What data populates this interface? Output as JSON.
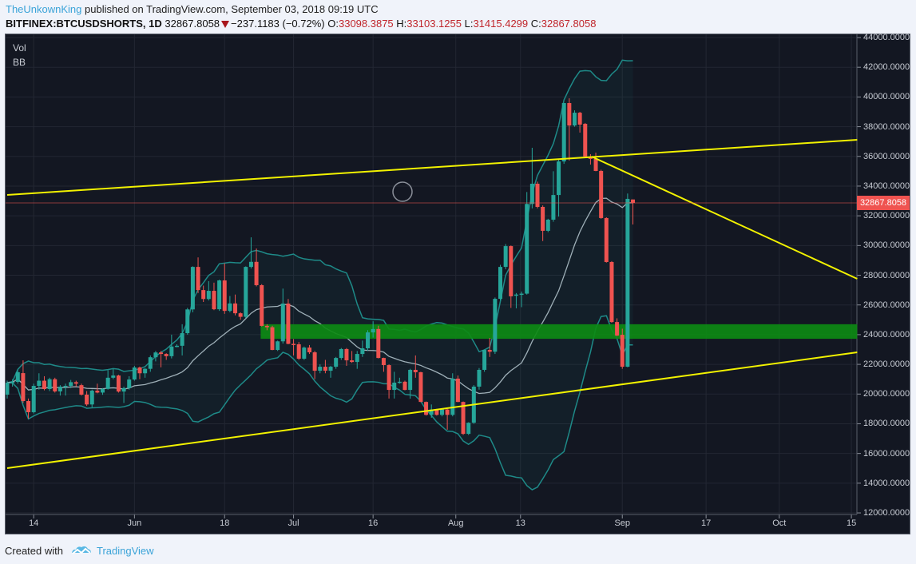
{
  "header": {
    "author": "TheUnkownKing",
    "published": "published on TradingView.com, September 03, 2018 09:19 UTC",
    "symbol": "BITFINEX:BTCUSDSHORTS, 1D",
    "last": "32867.8058",
    "change": "−237.1183 (−0.72%)",
    "o_label": "O:",
    "o": "33098.3875",
    "h_label": "H:",
    "h": "33103.1255",
    "l_label": "L:",
    "l": "31415.4299",
    "c_label": "C:",
    "c": "32867.8058",
    "direction_icon": "down-triangle-icon"
  },
  "legend": [
    "Vol",
    "BB"
  ],
  "price_tag": "32867.8058",
  "footer": {
    "created_with": "Created with",
    "brand": "TradingView"
  },
  "colors": {
    "up": "#26a69a",
    "down": "#ef5350",
    "bands": "#1e8a88",
    "basis": "#9fb0b8",
    "trend": "#f2f200",
    "zone": "#0d8a14",
    "bg": "#131722",
    "grid": "#232733"
  },
  "chart_data": {
    "type": "candlestick",
    "x_unit": "day index from first candle",
    "ylim": [
      12000,
      44000
    ],
    "y_ticks": [
      "44000.0000",
      "42000.0000",
      "40000.0000",
      "38000.0000",
      "36000.0000",
      "34000.0000",
      "32000.0000",
      "30000.0000",
      "28000.0000",
      "26000.0000",
      "24000.0000",
      "22000.0000",
      "20000.0000",
      "18000.0000",
      "16000.0000",
      "14000.0000",
      "12000.0000"
    ],
    "y_tick_values": [
      44000,
      42000,
      40000,
      38000,
      36000,
      34000,
      32000,
      30000,
      28000,
      26000,
      24000,
      22000,
      20000,
      18000,
      16000,
      14000,
      12000
    ],
    "x_ticks": [
      {
        "label": "14",
        "day": 5
      },
      {
        "label": "Jun",
        "day": 24
      },
      {
        "label": "18",
        "day": 41
      },
      {
        "label": "Jul",
        "day": 54
      },
      {
        "label": "16",
        "day": 69
      },
      {
        "label": "Aug",
        "day": 84.6
      },
      {
        "label": "13",
        "day": 96.8
      },
      {
        "label": "Sep",
        "day": 116
      },
      {
        "label": "17",
        "day": 131.8
      },
      {
        "label": "Oct",
        "day": 145.6
      },
      {
        "label": "15",
        "day": 159.2
      }
    ],
    "x_max_day": 160.3,
    "last_price": 32867.8058,
    "indicators": {
      "bb_period": 20,
      "bb_mult": 2
    },
    "ohlc": [
      [
        19960,
        20900,
        19700,
        20770
      ],
      [
        20770,
        21000,
        20500,
        20820
      ],
      [
        20820,
        21600,
        20700,
        21470
      ],
      [
        21410,
        22270,
        19400,
        19530
      ],
      [
        19530,
        19700,
        18350,
        18780
      ],
      [
        18780,
        20700,
        18700,
        20550
      ],
      [
        20550,
        21400,
        20300,
        20900
      ],
      [
        20900,
        21200,
        20250,
        20340
      ],
      [
        20340,
        21100,
        20200,
        21000
      ],
      [
        21000,
        21100,
        20100,
        20180
      ],
      [
        20180,
        20600,
        19900,
        20500
      ],
      [
        20500,
        20700,
        19900,
        20550
      ],
      [
        20550,
        20950,
        20400,
        20800
      ],
      [
        20800,
        20900,
        20500,
        20700
      ],
      [
        20600,
        20700,
        19900,
        19960
      ],
      [
        19960,
        20200,
        19200,
        19300
      ],
      [
        19300,
        20300,
        19100,
        20230
      ],
      [
        20230,
        20700,
        20050,
        20100
      ],
      [
        20100,
        20400,
        19950,
        20350
      ],
      [
        20350,
        21600,
        20300,
        21100
      ],
      [
        21100,
        21700,
        21000,
        21250
      ],
      [
        21250,
        21300,
        20100,
        20170
      ],
      [
        20170,
        20500,
        19400,
        20400
      ],
      [
        20400,
        21200,
        20300,
        20980
      ],
      [
        20980,
        21900,
        20900,
        21790
      ],
      [
        21790,
        21850,
        21000,
        21400
      ],
      [
        21400,
        21750,
        21100,
        21700
      ],
      [
        21700,
        22600,
        21500,
        22480
      ],
      [
        22480,
        22900,
        22200,
        22800
      ],
      [
        22800,
        22900,
        21800,
        22700
      ],
      [
        22700,
        22750,
        22300,
        22550
      ],
      [
        22550,
        24000,
        22400,
        23200
      ],
      [
        23250,
        23350,
        23150,
        23250
      ],
      [
        23250,
        24700,
        22600,
        24100
      ],
      [
        24100,
        25800,
        24000,
        25700
      ],
      [
        25700,
        28600,
        25500,
        28560
      ],
      [
        28560,
        29200,
        26800,
        27000
      ],
      [
        27000,
        27300,
        26200,
        26400
      ],
      [
        26400,
        27600,
        26300,
        26950
      ],
      [
        26950,
        27500,
        25650,
        25710
      ],
      [
        25710,
        27700,
        25600,
        27650
      ],
      [
        27650,
        28800,
        25400,
        25600
      ],
      [
        25600,
        26600,
        25500,
        26100
      ],
      [
        26100,
        26700,
        25300,
        25440
      ],
      [
        25440,
        25500,
        25000,
        25200
      ],
      [
        25200,
        28600,
        25100,
        28560
      ],
      [
        28560,
        30550,
        28450,
        28900
      ],
      [
        28900,
        29800,
        27250,
        27330
      ],
      [
        27330,
        27400,
        24550,
        24590
      ],
      [
        24590,
        24700,
        24300,
        24500
      ],
      [
        24500,
        24600,
        22950,
        22970
      ],
      [
        22970,
        23600,
        22900,
        23550
      ],
      [
        23550,
        27100,
        23400,
        26090
      ],
      [
        26090,
        26400,
        23350,
        23380
      ],
      [
        23380,
        23700,
        22600,
        23350
      ],
      [
        23350,
        23500,
        22300,
        22380
      ],
      [
        22380,
        23200,
        22300,
        23130
      ],
      [
        23130,
        23300,
        22700,
        22810
      ],
      [
        22810,
        22900,
        21000,
        21570
      ],
      [
        21570,
        22000,
        21400,
        21840
      ],
      [
        21840,
        22300,
        21400,
        21570
      ],
      [
        21570,
        21900,
        21100,
        21840
      ],
      [
        21840,
        22500,
        21700,
        22430
      ],
      [
        22430,
        23100,
        22300,
        23030
      ],
      [
        23030,
        23100,
        21900,
        22270
      ],
      [
        22270,
        22900,
        22100,
        22160
      ],
      [
        22160,
        22900,
        21700,
        22700
      ],
      [
        22700,
        23600,
        22500,
        23080
      ],
      [
        23080,
        24300,
        22900,
        24150
      ],
      [
        24150,
        24900,
        23800,
        24380
      ],
      [
        24380,
        24600,
        22400,
        22430
      ],
      [
        22430,
        22450,
        21500,
        21950
      ],
      [
        21950,
        22000,
        19700,
        20280
      ],
      [
        20280,
        21500,
        19700,
        20770
      ],
      [
        20770,
        21100,
        20700,
        20830
      ],
      [
        20830,
        20900,
        20250,
        20280
      ],
      [
        20280,
        21700,
        19690,
        21630
      ],
      [
        21630,
        22600,
        21100,
        21470
      ],
      [
        21470,
        21500,
        19450,
        19470
      ],
      [
        19470,
        19500,
        18550,
        18600
      ],
      [
        18600,
        19300,
        18400,
        18960
      ],
      [
        18960,
        19000,
        18550,
        18600
      ],
      [
        18600,
        19000,
        18500,
        18960
      ],
      [
        18960,
        19000,
        17600,
        18600
      ],
      [
        18600,
        21400,
        18500,
        21040
      ],
      [
        21040,
        21250,
        19450,
        19470
      ],
      [
        19470,
        19500,
        17250,
        17320
      ],
      [
        17320,
        18100,
        17250,
        18070
      ],
      [
        18070,
        20600,
        18000,
        20500
      ],
      [
        20500,
        21750,
        20300,
        21630
      ],
      [
        21630,
        23000,
        21500,
        22970
      ],
      [
        22970,
        23780,
        22500,
        22850
      ],
      [
        22850,
        26500,
        22700,
        26410
      ],
      [
        26410,
        28700,
        26300,
        28560
      ],
      [
        28560,
        30100,
        28400,
        29960
      ],
      [
        29960,
        30000,
        25800,
        26580
      ],
      [
        26620,
        26800,
        25770,
        26700
      ],
      [
        26700,
        26900,
        25850,
        26760
      ],
      [
        26760,
        33600,
        26700,
        32800
      ],
      [
        32800,
        36580,
        32500,
        34160
      ],
      [
        34160,
        34300,
        32500,
        32600
      ],
      [
        32600,
        32700,
        30300,
        30990
      ],
      [
        30990,
        31800,
        30900,
        31740
      ],
      [
        31740,
        35000,
        31600,
        33400
      ],
      [
        33400,
        35800,
        31950,
        35660
      ],
      [
        35660,
        39600,
        35500,
        39590
      ],
      [
        39590,
        39910,
        35720,
        38080
      ],
      [
        38080,
        39100,
        38000,
        38940
      ],
      [
        38940,
        39000,
        37600,
        38140
      ],
      [
        38190,
        38250,
        35950,
        35990
      ],
      [
        35990,
        36150,
        35450,
        35830
      ],
      [
        35830,
        36250,
        35000,
        35020
      ],
      [
        35020,
        35100,
        31800,
        31850
      ],
      [
        31850,
        31900,
        28850,
        28890
      ],
      [
        28890,
        28950,
        24800,
        24850
      ],
      [
        24850,
        25100,
        23900,
        23940
      ],
      [
        23990,
        24400,
        21700,
        21840
      ],
      [
        21840,
        33500,
        21800,
        33140
      ],
      [
        33098.3875,
        33103.1255,
        31415.4299,
        32867.8058
      ]
    ],
    "drawings": {
      "upper_trendline": [
        [
          0.0,
          33405
        ],
        [
          160.3,
          37116
        ]
      ],
      "lower_trendline": [
        [
          0.0,
          15013
        ],
        [
          160.3,
          22810
        ]
      ],
      "descending_trendline": [
        [
          110.2,
          35987
        ],
        [
          160.3,
          27758
        ]
      ],
      "support_zone": {
        "from_day": 47.8,
        "to_day": 160.3,
        "low": 23720,
        "high": 24700
      }
    }
  }
}
